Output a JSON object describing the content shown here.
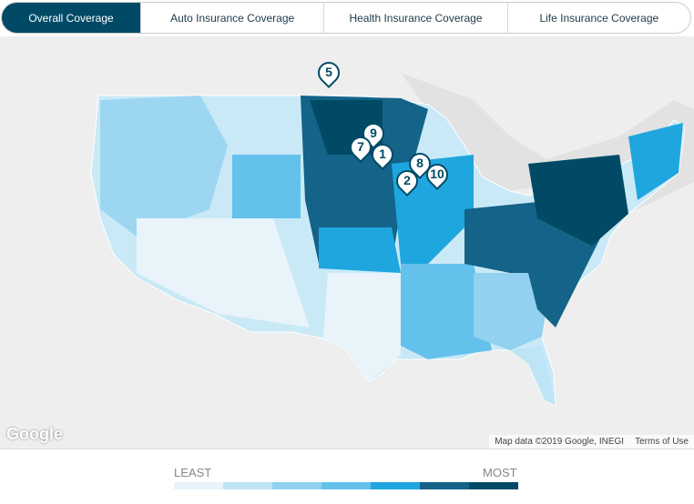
{
  "tabs": [
    {
      "label": "Overall Coverage",
      "active": true
    },
    {
      "label": "Auto Insurance Coverage",
      "active": false
    },
    {
      "label": "Health Insurance Coverage",
      "active": false
    },
    {
      "label": "Life Insurance Coverage",
      "active": false
    }
  ],
  "map": {
    "logo": "Google",
    "attribution": "Map data ©2019 Google, INEGI",
    "terms": "Terms of Use",
    "markers": [
      "5",
      "9",
      "7",
      "1",
      "8",
      "2",
      "10"
    ]
  },
  "legend": {
    "least": "LEAST",
    "most": "MOST",
    "colors": [
      "#e8f4fa",
      "#bde5f5",
      "#92d1ef",
      "#64c1ec",
      "#1fa6de",
      "#146389",
      "#004a66"
    ]
  }
}
